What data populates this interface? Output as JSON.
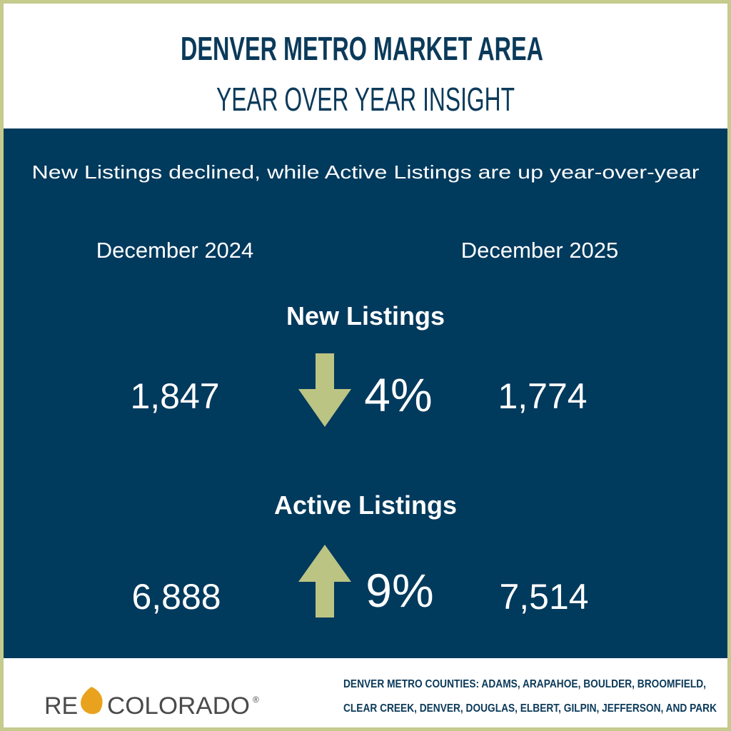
{
  "header": {
    "title": "DENVER METRO MARKET AREA",
    "subtitle": "YEAR OVER YEAR INSIGHT"
  },
  "summary": "New Listings declined, while Active Listings are up year-over-year",
  "periods": [
    "December 2024",
    "December 2025"
  ],
  "metrics": [
    {
      "label": "New Listings",
      "before": "1,847",
      "change": "4%",
      "after": "1,774"
    },
    {
      "label": "Active Listings",
      "before": "6,888",
      "change": "9%",
      "after": "7,514"
    }
  ],
  "footer": {
    "logo": {
      "left": "RE",
      "right": "COLORADO",
      "mark": "®"
    },
    "counties": [
      "DENVER METRO COUNTIES: ADAMS, ARAPAHOE, BOULDER, BROOMFIELD,",
      "CLEAR CREEK, DENVER, DOUGLAS, ELBERT, GILPIN, JEFFERSON, AND PARK"
    ]
  }
}
